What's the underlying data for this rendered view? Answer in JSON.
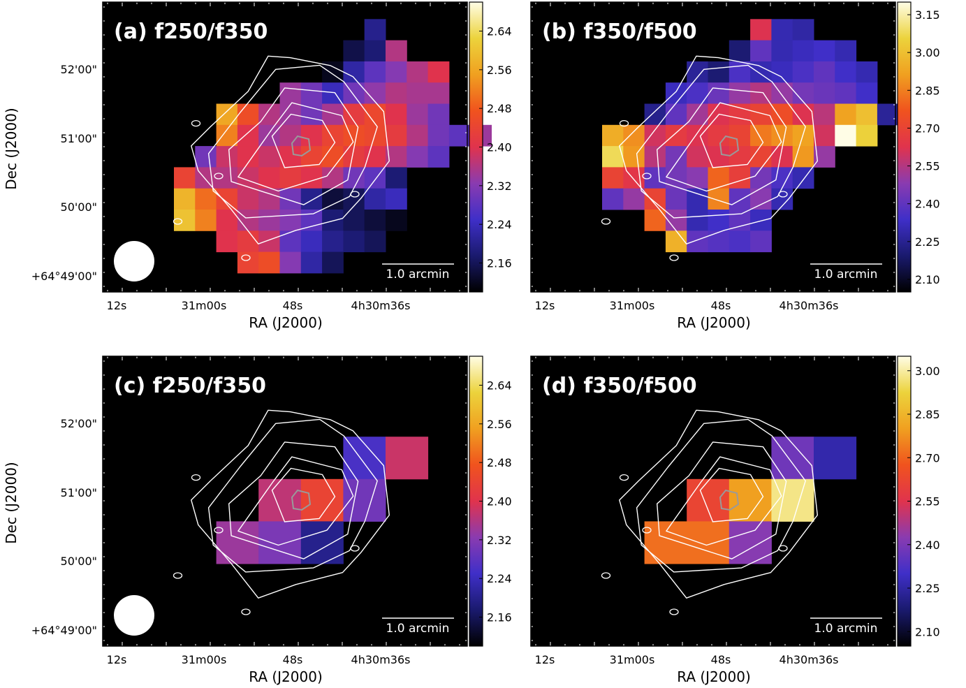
{
  "figure": {
    "ra_label": "RA (J2000)",
    "dec_label": "Dec (J2000)",
    "ra_ticks": [
      "12s",
      "31m00s",
      "48s",
      "4h30m36s"
    ],
    "dec_ticks": [
      "52'00\"",
      "51'00\"",
      "50'00\"",
      "+64°49'00\""
    ],
    "scalebar_label": "1.0 arcmin",
    "colors": {
      "contour": "#ffffff",
      "core_contour": "#9a9a9a",
      "background": "#000000",
      "colormap": [
        "#000000",
        "#1a1a6e",
        "#3f2fc8",
        "#8a3bb0",
        "#e0334d",
        "#f0531e",
        "#f0a020",
        "#ecd33c",
        "#fffde6"
      ]
    }
  },
  "chart_data": [
    {
      "type": "heatmap",
      "title": "(a) f250/f350",
      "colorbar_ticks": [
        2.64,
        2.56,
        2.48,
        2.4,
        2.32,
        2.24,
        2.16
      ],
      "colorbar_range": [
        2.1,
        2.7
      ],
      "beam_shown": true,
      "pixel_scale_arcsec": 10,
      "cells": [
        [
          null,
          null,
          null,
          null,
          null,
          null,
          null,
          null,
          null,
          null,
          null,
          null,
          null,
          null,
          null,
          null
        ],
        [
          null,
          null,
          null,
          null,
          null,
          null,
          null,
          null,
          null,
          2.2,
          null,
          null,
          null,
          null,
          null,
          null
        ],
        [
          null,
          null,
          null,
          null,
          null,
          null,
          null,
          null,
          2.15,
          2.18,
          2.36,
          null,
          null,
          null,
          null,
          null
        ],
        [
          null,
          null,
          null,
          null,
          null,
          null,
          null,
          2.12,
          2.22,
          2.28,
          2.32,
          2.36,
          2.4,
          null,
          null,
          null
        ],
        [
          null,
          null,
          null,
          null,
          null,
          2.34,
          2.3,
          2.24,
          2.3,
          2.33,
          2.36,
          2.35,
          2.35,
          null,
          null,
          null
        ],
        [
          null,
          null,
          2.56,
          2.46,
          2.36,
          2.34,
          2.3,
          2.35,
          2.42,
          2.45,
          2.4,
          2.34,
          2.3,
          null,
          null,
          null
        ],
        [
          null,
          null,
          2.52,
          2.4,
          2.34,
          2.36,
          2.4,
          2.44,
          2.46,
          2.45,
          2.42,
          2.36,
          2.3,
          2.28,
          2.34,
          null
        ],
        [
          null,
          2.3,
          2.38,
          2.4,
          2.38,
          2.4,
          2.44,
          2.46,
          2.42,
          2.4,
          2.36,
          2.32,
          2.28,
          null,
          null,
          null
        ],
        [
          2.44,
          2.36,
          2.36,
          2.38,
          2.4,
          2.42,
          2.4,
          2.36,
          2.3,
          2.28,
          2.18,
          null,
          null,
          null,
          null,
          null
        ],
        [
          2.58,
          2.5,
          2.44,
          2.38,
          2.36,
          2.3,
          2.2,
          2.14,
          2.16,
          2.22,
          2.24,
          null,
          null,
          null,
          null,
          null
        ],
        [
          2.6,
          2.52,
          2.4,
          2.36,
          2.34,
          2.32,
          2.28,
          2.18,
          2.16,
          2.14,
          2.12,
          null,
          null,
          null,
          null,
          null
        ],
        [
          null,
          null,
          2.4,
          2.42,
          2.38,
          2.28,
          2.24,
          2.2,
          2.18,
          2.16,
          null,
          null,
          null,
          null,
          null,
          null
        ],
        [
          null,
          null,
          null,
          2.44,
          2.46,
          2.32,
          2.22,
          2.16,
          null,
          null,
          null,
          null,
          null,
          null,
          null,
          null
        ]
      ]
    },
    {
      "type": "heatmap",
      "title": "(b) f350/f500",
      "colorbar_ticks": [
        3.15,
        3.0,
        2.85,
        2.7,
        2.55,
        2.4,
        2.25,
        2.1
      ],
      "colorbar_range": [
        2.05,
        3.2
      ],
      "beam_shown": false,
      "pixel_scale_arcsec": 10,
      "cells": [
        [
          null,
          null,
          null,
          null,
          null,
          null,
          null,
          null,
          null,
          null,
          null,
          null,
          null,
          null,
          null,
          null
        ],
        [
          null,
          null,
          null,
          null,
          null,
          null,
          null,
          2.62,
          2.3,
          2.28,
          null,
          null,
          null,
          null,
          null,
          null
        ],
        [
          null,
          null,
          null,
          null,
          null,
          null,
          2.2,
          2.4,
          2.3,
          2.32,
          2.34,
          2.3,
          null,
          null,
          null,
          null
        ],
        [
          null,
          null,
          null,
          null,
          2.26,
          2.2,
          2.36,
          2.3,
          2.32,
          2.36,
          2.4,
          2.34,
          2.3,
          null,
          null,
          null
        ],
        [
          null,
          null,
          null,
          2.32,
          2.36,
          2.42,
          2.5,
          2.55,
          2.5,
          2.44,
          2.42,
          2.4,
          2.34,
          null,
          null,
          null
        ],
        [
          null,
          null,
          2.24,
          2.4,
          2.52,
          2.62,
          2.66,
          2.7,
          2.74,
          2.62,
          2.56,
          2.92,
          3.0,
          2.26,
          null,
          null
        ],
        [
          2.95,
          2.88,
          2.6,
          2.66,
          2.62,
          2.66,
          2.7,
          2.84,
          2.88,
          2.92,
          2.6,
          3.2,
          3.05,
          null,
          null,
          null
        ],
        [
          3.08,
          2.9,
          2.56,
          2.44,
          2.6,
          2.62,
          2.66,
          2.7,
          2.62,
          2.9,
          2.5,
          null,
          null,
          null,
          null,
          null
        ],
        [
          2.7,
          2.64,
          2.4,
          2.44,
          2.48,
          2.8,
          2.68,
          2.44,
          2.36,
          2.3,
          null,
          null,
          null,
          null,
          null,
          null
        ],
        [
          2.4,
          2.5,
          2.7,
          2.42,
          2.3,
          2.86,
          2.4,
          2.48,
          2.3,
          null,
          null,
          null,
          null,
          null,
          null,
          null
        ],
        [
          null,
          null,
          2.8,
          2.5,
          2.3,
          2.34,
          2.4,
          2.32,
          null,
          null,
          null,
          null,
          null,
          null,
          null,
          null
        ],
        [
          null,
          null,
          null,
          2.96,
          2.4,
          2.38,
          2.36,
          2.4,
          null,
          null,
          null,
          null,
          null,
          null,
          null,
          null
        ]
      ]
    },
    {
      "type": "heatmap",
      "title": "(c) f250/f350",
      "colorbar_ticks": [
        2.64,
        2.56,
        2.48,
        2.4,
        2.32,
        2.24,
        2.16
      ],
      "colorbar_range": [
        2.1,
        2.7
      ],
      "beam_shown": true,
      "pixel_scale_arcsec": 20,
      "cells": [
        [
          null,
          null,
          null,
          null,
          null,
          null,
          null,
          null
        ],
        [
          null,
          null,
          null,
          null,
          null,
          null,
          null,
          null
        ],
        [
          null,
          null,
          null,
          null,
          2.26,
          2.38,
          null,
          null
        ],
        [
          null,
          null,
          2.37,
          2.44,
          2.3,
          null,
          null,
          null
        ],
        [
          null,
          2.34,
          2.31,
          2.2,
          null,
          null,
          null,
          null
        ]
      ]
    },
    {
      "type": "heatmap",
      "title": "(d) f350/f500",
      "colorbar_ticks": [
        3.0,
        2.85,
        2.7,
        2.55,
        2.4,
        2.25,
        2.1
      ],
      "colorbar_range": [
        2.05,
        3.05
      ],
      "beam_shown": false,
      "pixel_scale_arcsec": 20,
      "cells": [
        [
          null,
          null,
          null,
          null,
          null,
          null,
          null,
          null
        ],
        [
          null,
          null,
          null,
          null,
          null,
          null,
          null,
          null
        ],
        [
          null,
          null,
          null,
          null,
          2.38,
          2.26,
          null,
          null
        ],
        [
          null,
          null,
          2.62,
          2.8,
          2.98,
          null,
          null,
          null
        ],
        [
          null,
          2.72,
          2.72,
          2.42,
          null,
          null,
          null,
          null
        ]
      ]
    }
  ]
}
